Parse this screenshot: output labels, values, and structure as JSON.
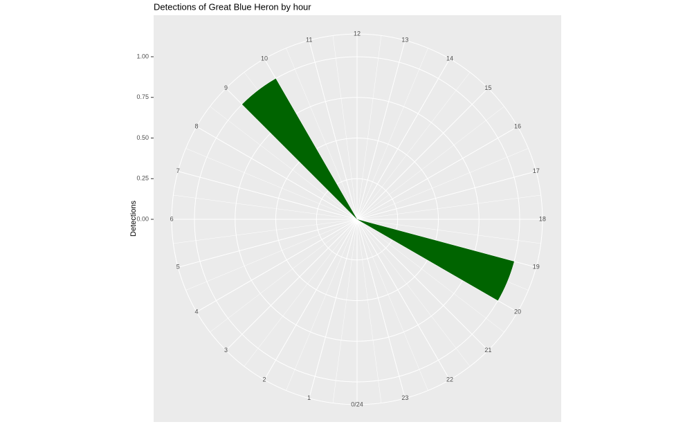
{
  "chart_data": {
    "type": "bar",
    "coord": "polar",
    "title": "Detections of Great Blue Heron by hour",
    "y_label": "Detections",
    "x": [
      9,
      19
    ],
    "values": [
      1,
      1
    ],
    "color": "#006400",
    "xlim": [
      0,
      24
    ],
    "xticks": [
      {
        "value": 0,
        "label": "0/24"
      },
      1,
      2,
      3,
      4,
      5,
      6,
      7,
      8,
      9,
      10,
      11,
      12,
      13,
      14,
      15,
      16,
      17,
      18,
      19,
      20,
      21,
      22,
      23
    ],
    "ylim": [
      0,
      1.14
    ],
    "yticks": [
      {
        "value": 0,
        "label": "0.00"
      },
      {
        "value": 0.25,
        "label": "0.25"
      },
      {
        "value": 0.5,
        "label": "0.50"
      },
      {
        "value": 0.75,
        "label": "0.75"
      },
      {
        "value": 1,
        "label": "1.00"
      }
    ],
    "grid": true
  }
}
